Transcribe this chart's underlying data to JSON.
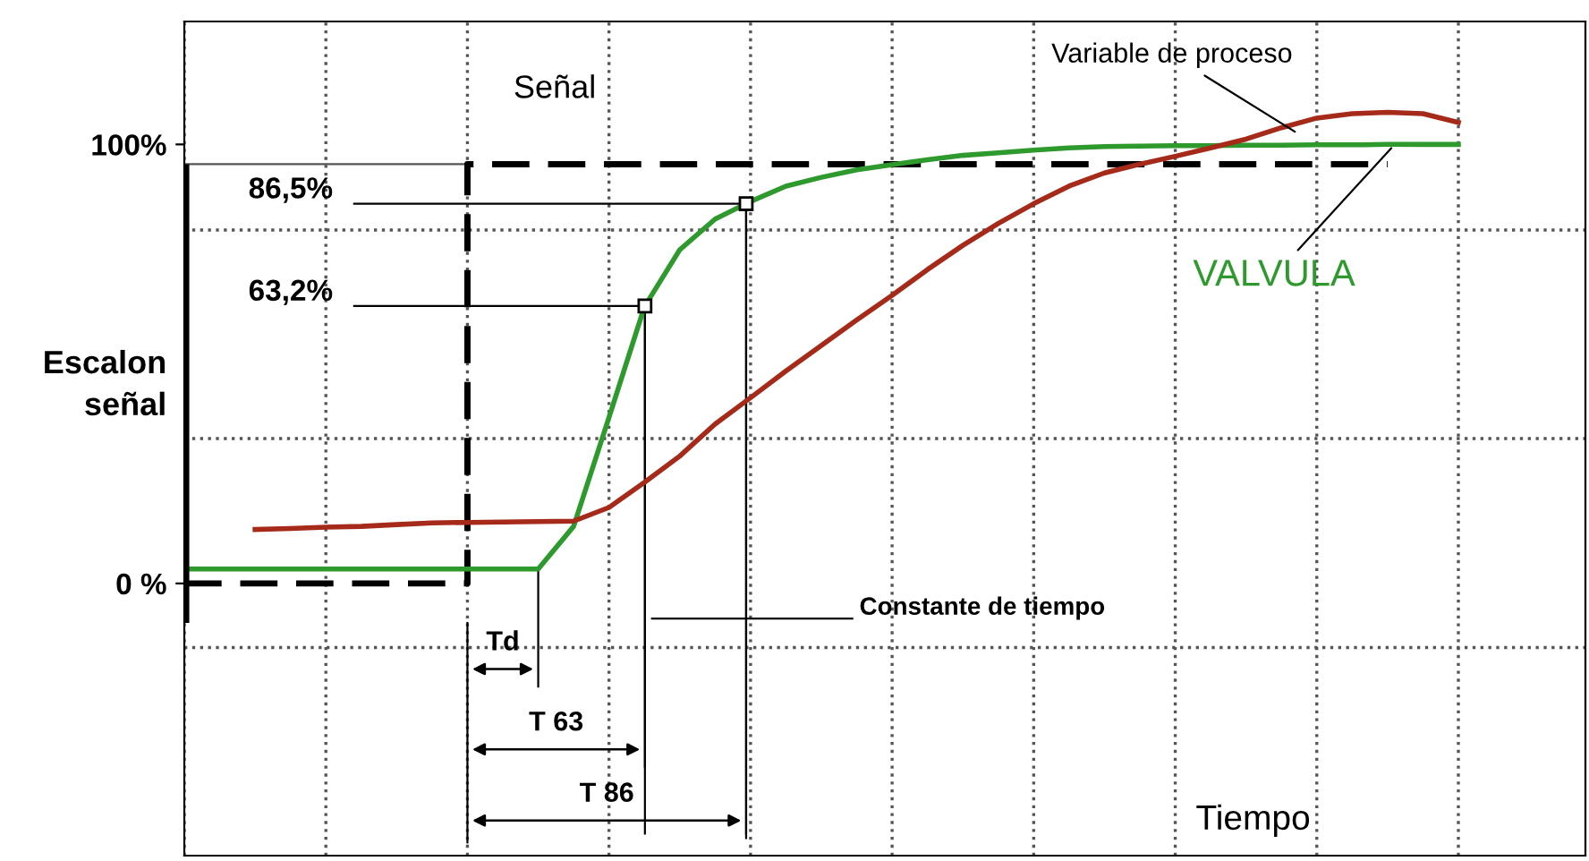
{
  "chart_data": {
    "type": "line",
    "xlabel": "Tiempo",
    "ylabel": "Escalon señal",
    "categories": [
      null,
      null,
      null,
      null,
      null,
      null,
      null,
      null,
      null,
      null,
      null,
      null,
      null,
      null,
      null,
      null,
      null,
      null,
      null,
      null,
      null,
      null,
      null,
      null,
      null,
      null,
      null,
      null,
      null,
      null,
      null,
      null,
      null,
      null,
      null,
      null,
      null,
      null
    ],
    "ylim": [
      -62,
      128
    ],
    "yticks": [
      {
        "value": 0,
        "label": "0 %"
      },
      {
        "value": 100,
        "label": "100%"
      }
    ],
    "grid": "x",
    "tick_labels": "y",
    "ref_lines": [
      {
        "axis": "y",
        "value": -14.6,
        "color": "#555555",
        "line_style": "dotted"
      },
      {
        "axis": "y",
        "value": 33,
        "color": "#555555",
        "line_style": "dotted"
      },
      {
        "axis": "y",
        "value": 80.5,
        "color": "#555555",
        "line_style": "dotted"
      },
      {
        "axis": "y",
        "value": 86.5,
        "label": "86,5%",
        "color": "#000000",
        "line_style": "solid"
      },
      {
        "axis": "y",
        "value": 63.2,
        "label": "63,2%",
        "color": "#000000",
        "line_style": "solid"
      }
    ],
    "series": [
      {
        "name": "Señal",
        "type": "step",
        "color": "#000000",
        "line_style": "dashed",
        "values": [
          0,
          0,
          0,
          0,
          0,
          0,
          0,
          0,
          95.5,
          95.5,
          95.5,
          95.5,
          95.5,
          95.5,
          95.5,
          95.5,
          95.5,
          95.5,
          95.5,
          95.5,
          95.5,
          95.5,
          95.5,
          95.5,
          95.5,
          95.5,
          95.5,
          95.5,
          95.5,
          95.5,
          95.5,
          95.5,
          95.5,
          95.5,
          95.5,
          null,
          null,
          null
        ]
      },
      {
        "name": "VALVULA",
        "color": "#2e9a2e",
        "line_style": "solid",
        "values": [
          3.3,
          3.3,
          3.3,
          3.3,
          3.3,
          3.3,
          3.3,
          3.3,
          3.3,
          3.3,
          3.3,
          13,
          37.8,
          63,
          76,
          83,
          87,
          90.5,
          92.5,
          94.2,
          95.4,
          96.5,
          97.5,
          98.1,
          98.7,
          99.2,
          99.5,
          99.6,
          99.7,
          99.7,
          99.8,
          99.8,
          99.9,
          99.9,
          100,
          100,
          100,
          null
        ]
      },
      {
        "name": "Variable de proceso",
        "color": "#a52a1a",
        "line_style": "solid",
        "values": [
          null,
          null,
          12.3,
          12.5,
          12.8,
          13,
          13.4,
          13.8,
          13.9,
          14,
          14.1,
          14.2,
          17.3,
          23,
          29,
          36.3,
          42.3,
          48.4,
          54.2,
          60,
          65.6,
          71.5,
          77,
          82,
          86.5,
          90.5,
          93.5,
          95.5,
          97.3,
          99.2,
          101.2,
          103.8,
          106,
          107,
          107.3,
          107,
          105,
          null
        ]
      }
    ],
    "annotations": [
      "Td",
      "T 63",
      "T 86",
      "Constante de tiempo"
    ]
  }
}
